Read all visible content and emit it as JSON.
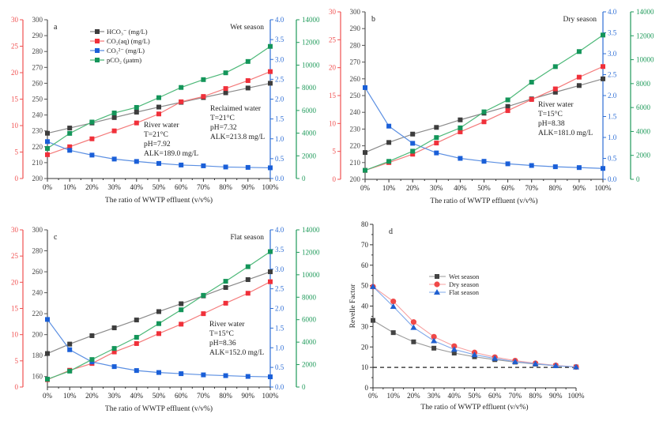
{
  "chart_data": [
    {
      "panel": "a",
      "type": "line",
      "title": "Wet season",
      "xlabel": "The ratio of WWTP effluent (v/v%)",
      "categories": [
        "0%",
        "10%",
        "20%",
        "30%",
        "40%",
        "50%",
        "60%",
        "70%",
        "80%",
        "90%",
        "100%"
      ],
      "axes": {
        "hco3": {
          "range": [
            200,
            300
          ],
          "ticks": [
            200,
            210,
            220,
            230,
            240,
            250,
            260,
            270,
            280,
            290,
            300
          ],
          "color": "#444444",
          "side": "left-inner"
        },
        "co2aq": {
          "range": [
            0,
            30
          ],
          "ticks": [
            0,
            5,
            10,
            15,
            20,
            25,
            30
          ],
          "color": "#f05050",
          "side": "left-outer"
        },
        "co3": {
          "range": [
            0,
            4
          ],
          "ticks": [
            "0.0",
            "0.5",
            "1.0",
            "1.5",
            "2.0",
            "2.5",
            "3.0",
            "3.5",
            "4.0"
          ],
          "color": "#2f6fd6",
          "side": "right-inner"
        },
        "pco2": {
          "range": [
            0,
            14000
          ],
          "ticks": [
            0,
            2000,
            4000,
            6000,
            8000,
            10000,
            12000,
            14000
          ],
          "color": "#1f9a5a",
          "side": "right-outer"
        }
      },
      "series": [
        {
          "name": "HCO3- (mg/L)",
          "axis": "hco3",
          "color": "#444444",
          "values": [
            228.5,
            231.8,
            235.0,
            238.4,
            241.8,
            245.0,
            248.0,
            251.0,
            254.0,
            257.0,
            260.0
          ]
        },
        {
          "name": "CO2(aq) (mg/L)",
          "axis": "co2aq",
          "color": "#f05050",
          "values": [
            4.5,
            6.0,
            7.5,
            9.0,
            10.5,
            12.2,
            14.5,
            15.5,
            17.0,
            18.5,
            20.2
          ]
        },
        {
          "name": "CO3 2- (mg/L)",
          "axis": "co3",
          "color": "#2f6fd6",
          "values": [
            0.93,
            0.71,
            0.59,
            0.49,
            0.43,
            0.38,
            0.34,
            0.32,
            0.29,
            0.28,
            0.27
          ]
        },
        {
          "name": "pCO2 (μatm)",
          "axis": "pco2",
          "color": "#1f9a5a",
          "values": [
            2650,
            3980,
            4980,
            5780,
            6270,
            7130,
            8030,
            8720,
            9320,
            10320,
            11650
          ]
        }
      ],
      "legend": [
        "HCO₃⁻ (mg/L)",
        "CO₂(aq) (mg/L)",
        "CO₃²⁻ (mg/L)",
        "pCO₂ (μatm)"
      ],
      "annotations": [
        {
          "lines": [
            "River water",
            "T=21°C",
            "pH=7.92",
            "ALK=189.0 mg/L"
          ]
        },
        {
          "lines": [
            "Reclaimed water",
            "T=21°C",
            "pH=7.32",
            "ALK=213.8 mg/L"
          ]
        }
      ]
    },
    {
      "panel": "b",
      "type": "line",
      "title": "Dry season",
      "xlabel": "The ratio of WWTP effluent (v/v%)",
      "categories": [
        "0%",
        "10%",
        "20%",
        "30%",
        "40%",
        "50%",
        "60%",
        "70%",
        "80%",
        "90%",
        "100%"
      ],
      "axes": {
        "hco3": {
          "range": [
            200,
            300
          ],
          "ticks": [
            200,
            210,
            220,
            230,
            240,
            250,
            260,
            270,
            280,
            290,
            300
          ]
        },
        "co2aq": {
          "range": [
            0,
            30
          ],
          "ticks": [
            0,
            5,
            10,
            15,
            20,
            25,
            30
          ]
        },
        "co3": {
          "range": [
            0,
            4
          ],
          "ticks": [
            "0.0",
            "0.5",
            "1.0",
            "1.5",
            "2.0",
            "2.5",
            "3.0",
            "3.5",
            "4.0"
          ]
        },
        "pco2": {
          "range": [
            0,
            14000
          ],
          "ticks": [
            0,
            2000,
            4000,
            6000,
            8000,
            10000,
            12000,
            14000
          ]
        }
      },
      "series": [
        {
          "name": "HCO3- (mg/L)",
          "axis": "hco3",
          "values": [
            216.0,
            222.0,
            227.0,
            231.0,
            235.5,
            239.5,
            243.5,
            248.0,
            252.0,
            256.0,
            260.0
          ]
        },
        {
          "name": "CO2(aq) (mg/L)",
          "axis": "co2aq",
          "values": [
            1.6,
            3.0,
            4.5,
            6.5,
            8.5,
            10.3,
            12.3,
            14.3,
            16.2,
            18.3,
            20.2
          ]
        },
        {
          "name": "CO3 2- (mg/L)",
          "axis": "co3",
          "values": [
            2.19,
            1.27,
            0.86,
            0.63,
            0.5,
            0.43,
            0.37,
            0.33,
            0.3,
            0.28,
            0.26
          ]
        },
        {
          "name": "pCO2 (μatm)",
          "axis": "pco2",
          "values": [
            750,
            1500,
            2350,
            3490,
            4300,
            5640,
            6640,
            8120,
            9420,
            10680,
            12060
          ]
        }
      ],
      "annotations": [
        {
          "lines": [
            "River water",
            "T=15°C",
            "pH=8.38",
            "ALK=181.0 mg/L"
          ]
        }
      ]
    },
    {
      "panel": "c",
      "type": "line",
      "title": "Flat season",
      "xlabel": "The ratio of WWTP effluent (v/v%)",
      "categories": [
        "0%",
        "10%",
        "20%",
        "30%",
        "40%",
        "50%",
        "60%",
        "70%",
        "80%",
        "90%",
        "100%"
      ],
      "axes": {
        "hco3": {
          "range": [
            150,
            300
          ],
          "ticks": [
            160,
            180,
            200,
            220,
            240,
            260,
            280,
            300
          ]
        },
        "co2aq": {
          "range": [
            0,
            30
          ],
          "ticks": [
            0,
            5,
            10,
            15,
            20,
            25,
            30
          ]
        },
        "co3": {
          "range": [
            0,
            4
          ],
          "ticks": [
            "0.0",
            "0.5",
            "1.0",
            "1.5",
            "2.0",
            "2.5",
            "3.0",
            "3.5",
            "4.0"
          ]
        },
        "pco2": {
          "range": [
            0,
            14000
          ],
          "ticks": [
            0,
            2000,
            4000,
            6000,
            8000,
            10000,
            12000,
            14000
          ]
        }
      },
      "series": [
        {
          "name": "HCO3- (mg/L)",
          "axis": "hco3",
          "values": [
            182.0,
            191.0,
            199.0,
            206.5,
            214.0,
            222.0,
            229.5,
            237.0,
            245.0,
            252.5,
            260.0
          ]
        },
        {
          "name": "CO2(aq) (mg/L)",
          "axis": "co2aq",
          "values": [
            1.4,
            3.2,
            4.5,
            6.7,
            8.3,
            10.2,
            12.0,
            14.0,
            16.0,
            17.9,
            20.1
          ]
        },
        {
          "name": "CO3 2- (mg/L)",
          "axis": "co3",
          "values": [
            1.72,
            0.95,
            0.64,
            0.52,
            0.42,
            0.37,
            0.34,
            0.31,
            0.29,
            0.27,
            0.26
          ]
        },
        {
          "name": "pCO2 (μatm)",
          "axis": "pco2",
          "values": [
            700,
            1420,
            2450,
            3440,
            4430,
            5650,
            6880,
            8170,
            9420,
            10720,
            12060
          ]
        }
      ],
      "annotations": [
        {
          "lines": [
            "River water",
            "T=15°C",
            "pH=8.36",
            "ALK=152.0 mg/L"
          ]
        }
      ]
    },
    {
      "panel": "d",
      "type": "line",
      "title": "",
      "xlabel": "The ratio of WWTP effluent (v/v%)",
      "ylabel": "Revelle Factor",
      "ylim": [
        0,
        80
      ],
      "yticks": [
        0,
        10,
        20,
        30,
        40,
        50,
        60,
        70,
        80
      ],
      "categories": [
        "0%",
        "10%",
        "20%",
        "30%",
        "40%",
        "50%",
        "60%",
        "70%",
        "80%",
        "90%",
        "100%"
      ],
      "reference_line": {
        "y": 10,
        "style": "dashed"
      },
      "series": [
        {
          "name": "Wet season",
          "marker": "square",
          "color": "#444444",
          "values": [
            33.0,
            27.0,
            22.5,
            19.4,
            17.0,
            15.2,
            13.8,
            12.6,
            11.6,
            10.8,
            10.2
          ]
        },
        {
          "name": "Dry season",
          "marker": "circle",
          "color": "#f04848",
          "values": [
            49.5,
            42.3,
            32.2,
            25.0,
            20.4,
            17.3,
            15.0,
            13.3,
            12.0,
            11.0,
            10.2
          ]
        },
        {
          "name": "Flat season",
          "marker": "triangle",
          "color": "#1f5fd0",
          "values": [
            49.5,
            39.8,
            29.5,
            23.0,
            18.8,
            16.2,
            14.4,
            12.8,
            11.8,
            10.8,
            10.2
          ]
        }
      ],
      "legend_position": "center-left"
    }
  ]
}
